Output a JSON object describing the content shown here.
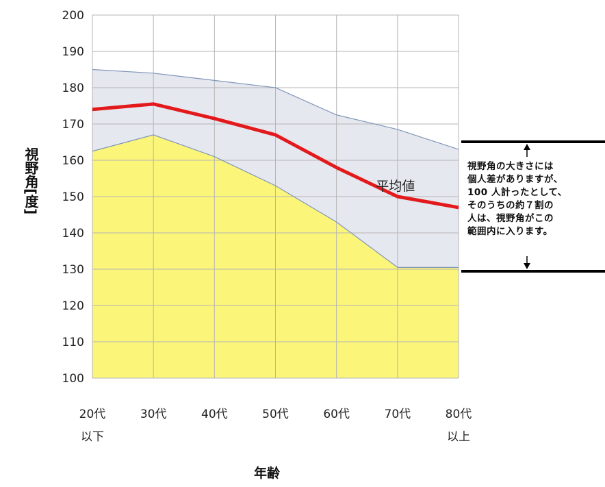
{
  "chart_data": {
    "type": "area",
    "categories": [
      [
        "20代",
        "以下"
      ],
      [
        "30代"
      ],
      [
        "40代"
      ],
      [
        "50代"
      ],
      [
        "60代"
      ],
      [
        "70代"
      ],
      [
        "80代",
        "以上"
      ]
    ],
    "xlabel": "年齢",
    "ylabel": "視野角[度]",
    "ylim": [
      100,
      200
    ],
    "yticks": [
      100,
      110,
      120,
      130,
      140,
      150,
      160,
      170,
      180,
      190,
      200
    ],
    "grid": true,
    "series": [
      {
        "role": "upper",
        "values": [
          185,
          184,
          182,
          180,
          172.5,
          168.5,
          163
        ]
      },
      {
        "role": "average",
        "name": "平均値",
        "values": [
          174,
          175.5,
          171.5,
          167,
          158,
          150,
          147
        ]
      },
      {
        "role": "lower",
        "values": [
          162.5,
          167,
          161,
          153,
          143,
          130.5,
          130.5
        ]
      }
    ],
    "colors": {
      "band": "#e6e8f0",
      "band_edge": "#7f95b8",
      "lower_fill": "#fbf57a",
      "average_line": "#e31a1c",
      "grid": "#b5b5b5"
    },
    "annotation": {
      "lines": [
        "視野角の大きさには",
        "個人差がありますが、",
        "100 人計ったとして、",
        "そのうちの約７割の",
        "人は、視野角がこの",
        "範囲内に入ります。"
      ]
    }
  }
}
